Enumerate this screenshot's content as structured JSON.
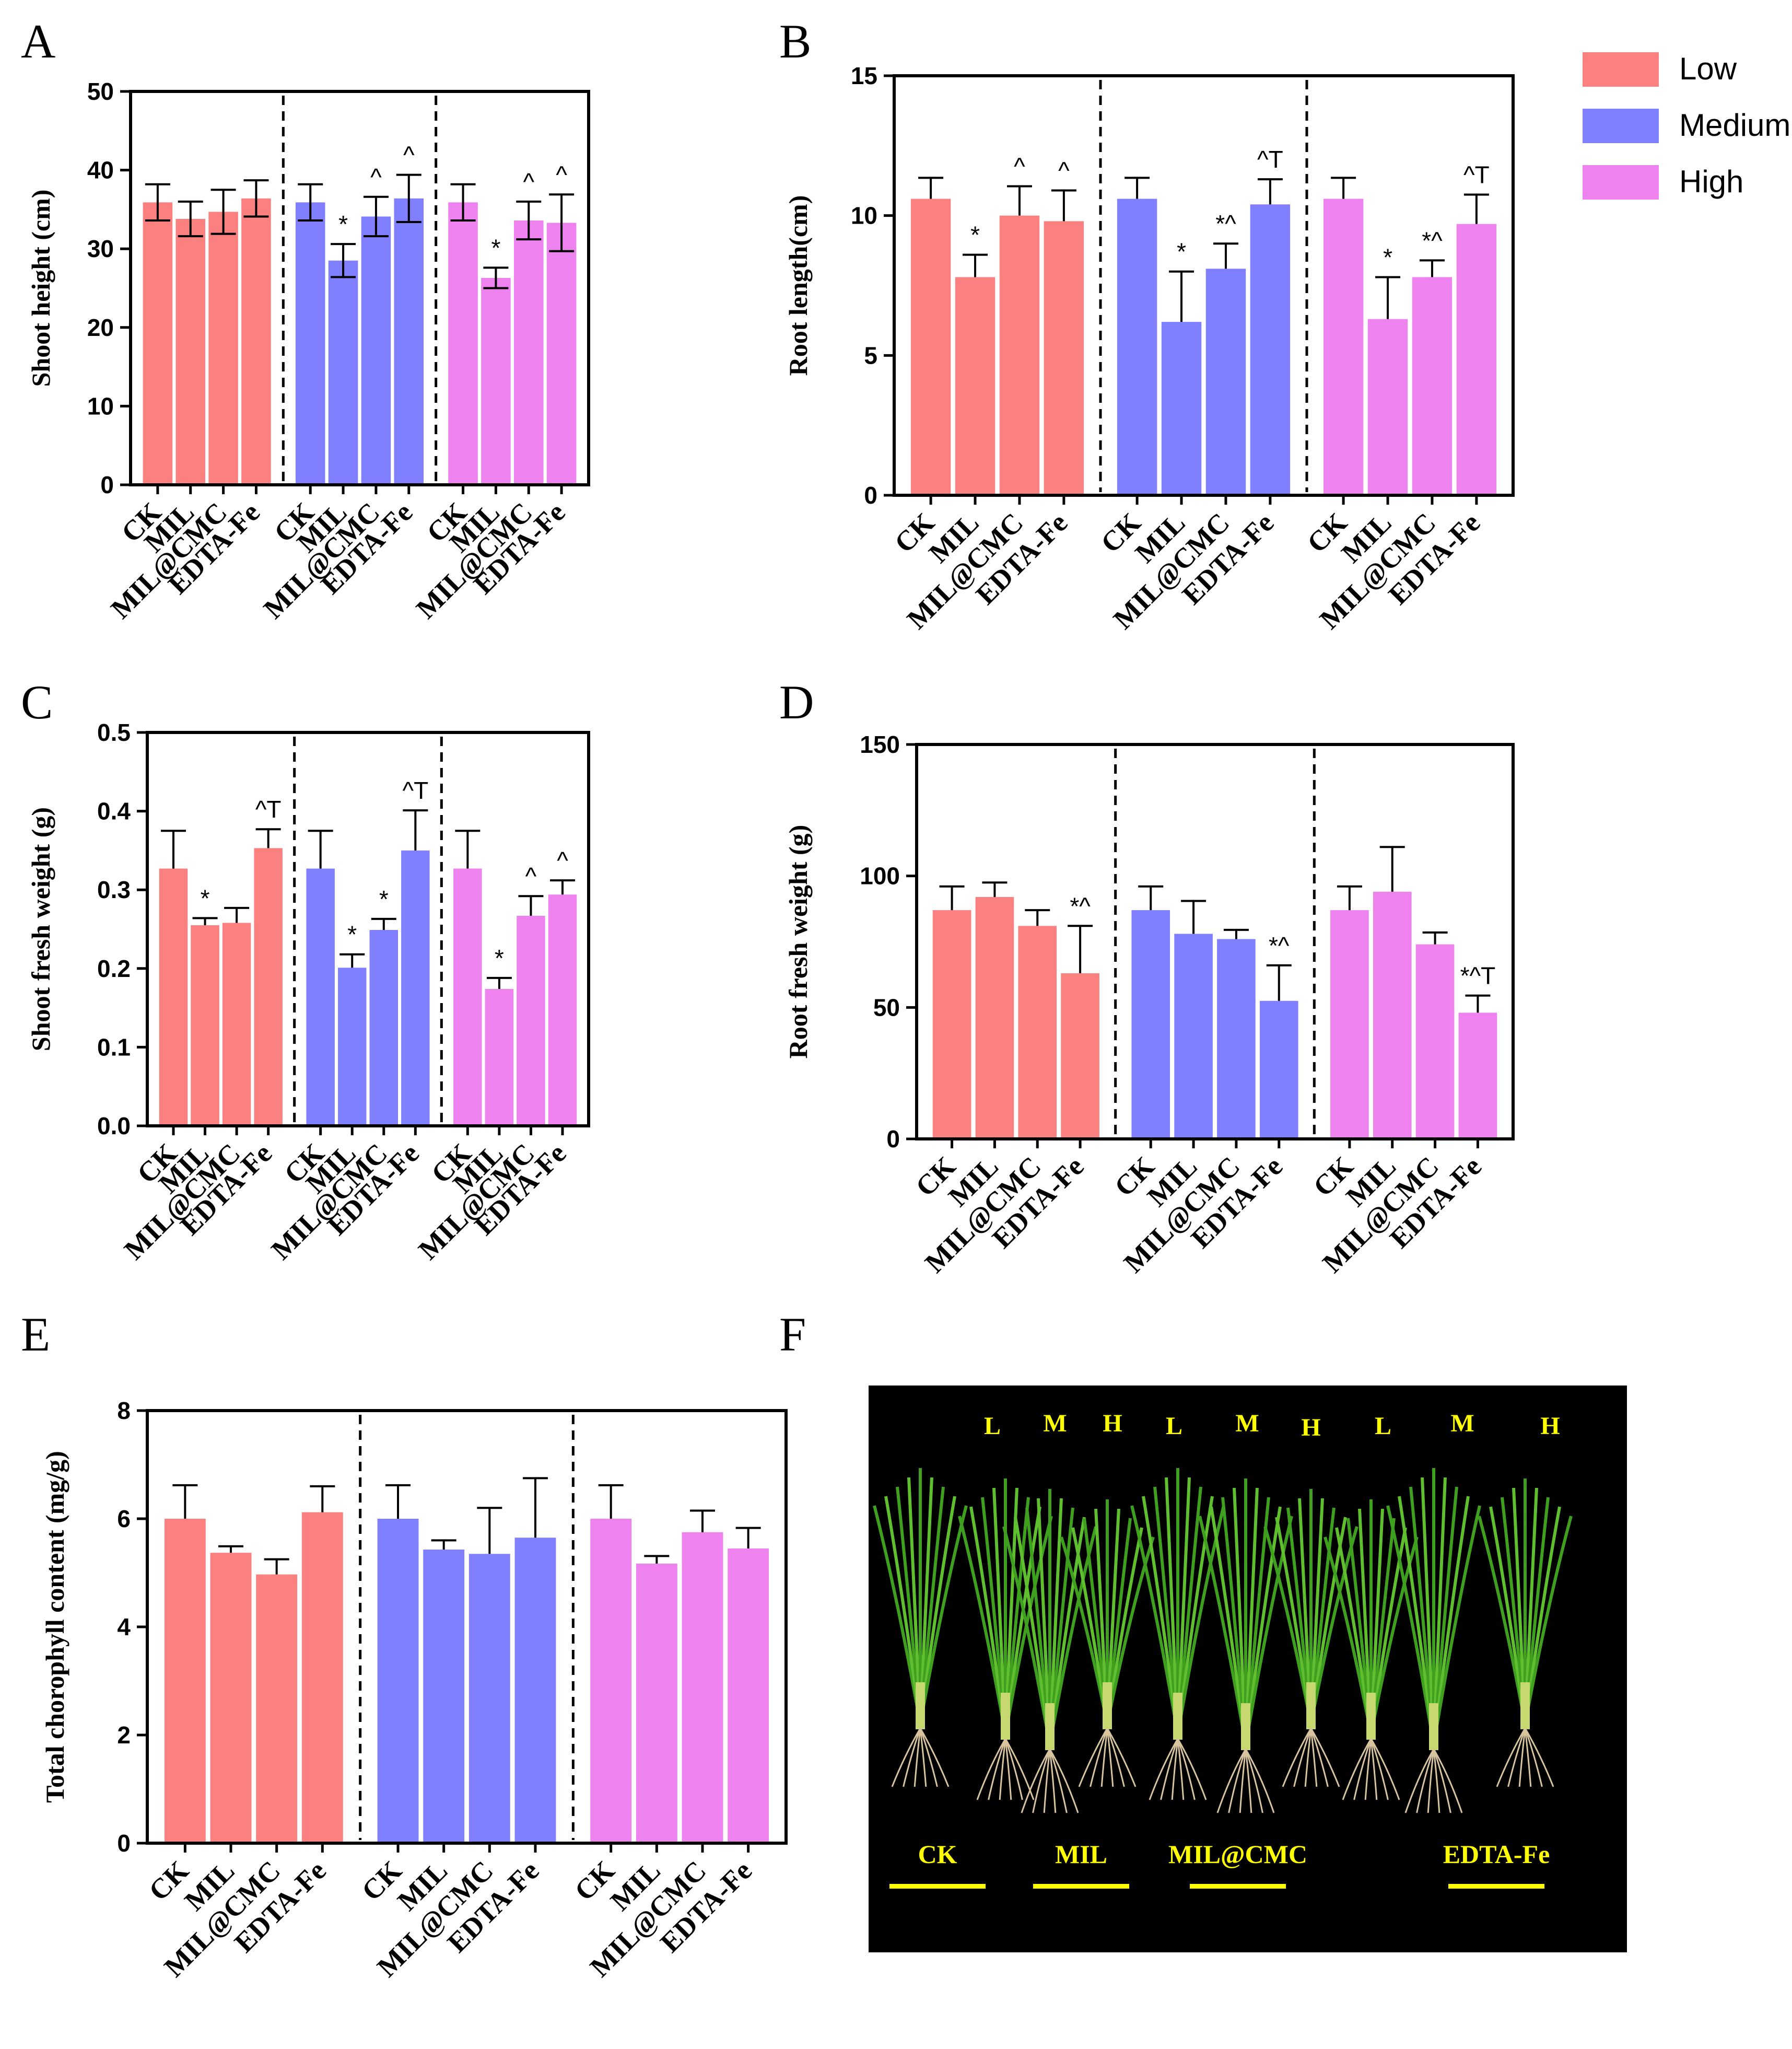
{
  "colors": {
    "Low": "#fb8080",
    "Medium": "#8080fe",
    "High": "#ee82ee",
    "photo_bg": "#000000",
    "photo_label": "#ffff00"
  },
  "legend": [
    {
      "name": "Low",
      "color": "#fb8080"
    },
    {
      "name": "Medium",
      "color": "#8080fe"
    },
    {
      "name": "High",
      "color": "#ee82ee"
    }
  ],
  "chart_data": [
    {
      "panel": "A",
      "type": "bar",
      "ylabel": "Shoot height (cm)",
      "ylim": [
        0,
        50
      ],
      "yticks": [
        0,
        10,
        20,
        30,
        40,
        50
      ],
      "categories": [
        "CK",
        "MIL",
        "MIL@CMC",
        "EDTA-Fe"
      ],
      "series": [
        {
          "name": "Low",
          "values": [
            35.9,
            33.8,
            34.7,
            36.4
          ],
          "errors": [
            2.3,
            2.2,
            2.8,
            2.3
          ],
          "sig": [
            "",
            "",
            "",
            ""
          ]
        },
        {
          "name": "Medium",
          "values": [
            35.9,
            28.5,
            34.1,
            36.4
          ],
          "errors": [
            2.3,
            2.1,
            2.5,
            3.0
          ],
          "sig": [
            "",
            "*",
            "^",
            "^"
          ]
        },
        {
          "name": "High",
          "values": [
            35.9,
            26.3,
            33.6,
            33.3
          ],
          "errors": [
            2.3,
            1.3,
            2.4,
            3.6
          ],
          "sig": [
            "",
            "*",
            "^",
            "^"
          ]
        }
      ]
    },
    {
      "panel": "B",
      "type": "bar",
      "ylabel": "Root length(cm)",
      "ylim": [
        0,
        15
      ],
      "yticks": [
        0,
        5,
        10,
        15
      ],
      "categories": [
        "CK",
        "MIL",
        "MIL@CMC",
        "EDTA-Fe"
      ],
      "series": [
        {
          "name": "Low",
          "values": [
            10.6,
            7.8,
            10.0,
            9.8
          ],
          "errors": [
            0.75,
            0.8,
            1.05,
            1.1
          ],
          "sig": [
            "",
            "*",
            "^",
            "^"
          ]
        },
        {
          "name": "Medium",
          "values": [
            10.6,
            6.2,
            8.1,
            10.4
          ],
          "errors": [
            0.75,
            1.8,
            0.9,
            0.9
          ],
          "sig": [
            "",
            "*",
            "*^",
            "^T"
          ]
        },
        {
          "name": "High",
          "values": [
            10.6,
            6.3,
            7.8,
            9.7
          ],
          "errors": [
            0.75,
            1.5,
            0.6,
            1.05
          ],
          "sig": [
            "",
            "*",
            "*^",
            "^T"
          ]
        }
      ]
    },
    {
      "panel": "C",
      "type": "bar",
      "ylabel": "Shoot fresh weight (g)",
      "ylim": [
        0,
        0.5
      ],
      "yticks": [
        "0.0",
        "0.1",
        "0.2",
        "0.3",
        "0.4",
        "0.5"
      ],
      "categories": [
        "CK",
        "MIL",
        "MIL@CMC",
        "EDTA-Fe"
      ],
      "series": [
        {
          "name": "Low",
          "values": [
            0.327,
            0.255,
            0.258,
            0.353
          ],
          "errors": [
            0.048,
            0.009,
            0.019,
            0.024
          ],
          "sig": [
            "",
            "*",
            "",
            "^T"
          ]
        },
        {
          "name": "Medium",
          "values": [
            0.327,
            0.201,
            0.249,
            0.35
          ],
          "errors": [
            0.048,
            0.017,
            0.014,
            0.051
          ],
          "sig": [
            "",
            "*",
            "*",
            "^T"
          ]
        },
        {
          "name": "High",
          "values": [
            0.327,
            0.174,
            0.267,
            0.294
          ],
          "errors": [
            0.048,
            0.014,
            0.025,
            0.018
          ],
          "sig": [
            "",
            "*",
            "^",
            "^"
          ]
        }
      ]
    },
    {
      "panel": "D",
      "type": "bar",
      "ylabel": "Root fresh weight (g)",
      "ylim": [
        0,
        150
      ],
      "yticks": [
        0,
        50,
        100,
        150
      ],
      "categories": [
        "CK",
        "MIL",
        "MIL@CMC",
        "EDTA-Fe"
      ],
      "series": [
        {
          "name": "Low",
          "values": [
            87,
            92,
            81,
            63
          ],
          "errors": [
            9,
            5.5,
            6,
            18
          ],
          "sig": [
            "",
            "",
            "",
            "*^"
          ]
        },
        {
          "name": "Medium",
          "values": [
            87,
            78,
            76,
            52.5
          ],
          "errors": [
            9,
            12.5,
            3.5,
            13.5
          ],
          "sig": [
            "",
            "",
            "",
            "*^"
          ]
        },
        {
          "name": "High",
          "values": [
            87,
            94,
            74,
            48
          ],
          "errors": [
            9,
            17,
            4.5,
            6.5
          ],
          "sig": [
            "",
            "",
            "",
            "*^T"
          ]
        }
      ]
    },
    {
      "panel": "E",
      "type": "bar",
      "ylabel": "Total chorophyll content (mg/g)",
      "ylim": [
        0,
        8
      ],
      "yticks": [
        0,
        2,
        4,
        6,
        8
      ],
      "categories": [
        "CK",
        "MIL",
        "MIL@CMC",
        "EDTA-Fe"
      ],
      "series": [
        {
          "name": "Low",
          "values": [
            6.0,
            5.37,
            4.97,
            6.12
          ],
          "errors": [
            0.62,
            0.12,
            0.28,
            0.48
          ],
          "sig": [
            "",
            "",
            "",
            ""
          ]
        },
        {
          "name": "Medium",
          "values": [
            6.0,
            5.43,
            5.35,
            5.65
          ],
          "errors": [
            0.62,
            0.17,
            0.85,
            1.1
          ],
          "sig": [
            "",
            "",
            "",
            ""
          ]
        },
        {
          "name": "High",
          "values": [
            6.0,
            5.17,
            5.75,
            5.45
          ],
          "errors": [
            0.62,
            0.14,
            0.4,
            0.38
          ],
          "sig": [
            "",
            "",
            "",
            ""
          ]
        }
      ]
    }
  ],
  "panel_letters": [
    "A",
    "B",
    "C",
    "D",
    "E",
    "F"
  ],
  "photo": {
    "top_labels": [
      "L",
      "M",
      "H",
      "L",
      "M",
      "H",
      "L",
      "M",
      "H"
    ],
    "bottom_labels": [
      "CK",
      "MIL",
      "MIL@CMC",
      "EDTA-Fe"
    ]
  }
}
